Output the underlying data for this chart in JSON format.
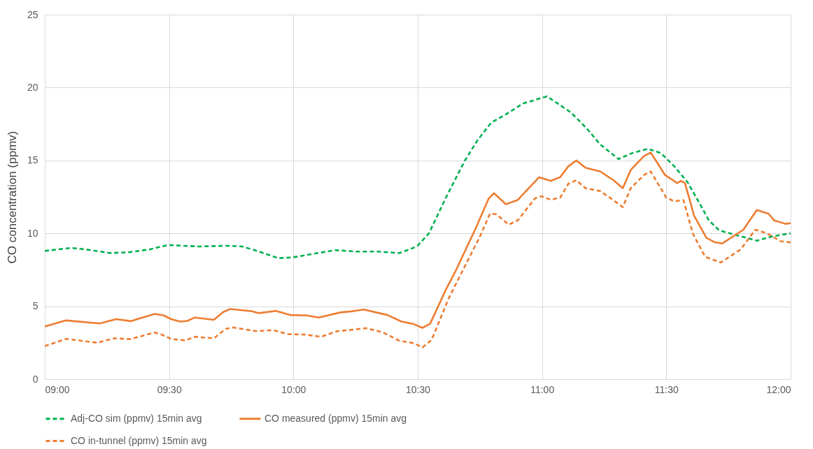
{
  "chart_data": {
    "type": "line",
    "ylabel": "CO concentration (ppmv)",
    "xlim": [
      9,
      12
    ],
    "xticks": [
      {
        "value": 9,
        "label": "09:00"
      },
      {
        "value": 9.5,
        "label": "09:30"
      },
      {
        "value": 10,
        "label": "10:00"
      },
      {
        "value": 10.5,
        "label": "10:30"
      },
      {
        "value": 11,
        "label": "11:00"
      },
      {
        "value": 11.5,
        "label": "11:30"
      },
      {
        "value": 12,
        "label": "12:00"
      }
    ],
    "ylim": [
      0,
      25
    ],
    "yticks": [
      0,
      5,
      10,
      15,
      20,
      25
    ],
    "grid": true,
    "legend": "bottom",
    "series": [
      {
        "name": "Adj-CO sim (ppmv) 15min avg",
        "color": "#00b050",
        "line_style": "dashed",
        "x": [
          9.0,
          9.106,
          9.164,
          9.264,
          9.336,
          9.422,
          9.494,
          9.623,
          9.738,
          9.795,
          9.853,
          9.939,
          9.996,
          10.082,
          10.168,
          10.255,
          10.341,
          10.427,
          10.497,
          10.545,
          10.615,
          10.69,
          10.741,
          10.796,
          10.849,
          10.923,
          11.02,
          11.116,
          11.18,
          11.234,
          11.308,
          11.362,
          11.426,
          11.479,
          11.532,
          11.586,
          11.629,
          11.671,
          11.713,
          11.778,
          11.864,
          11.928,
          12.0
        ],
        "values": [
          8.8,
          9.0,
          8.9,
          8.65,
          8.7,
          8.9,
          9.2,
          9.1,
          9.15,
          9.1,
          8.8,
          8.3,
          8.35,
          8.6,
          8.85,
          8.75,
          8.75,
          8.65,
          9.1,
          10.0,
          12.5,
          15.0,
          16.4,
          17.6,
          18.1,
          18.9,
          19.4,
          18.3,
          17.2,
          16.1,
          15.1,
          15.5,
          15.8,
          15.5,
          14.6,
          13.5,
          12.2,
          10.9,
          10.2,
          9.9,
          9.5,
          9.8,
          10.0
        ]
      },
      {
        "name": "CO measured (ppmv) 15min avg",
        "color": "#ed7d31",
        "line_style": "solid",
        "x": [
          9.0,
          9.086,
          9.221,
          9.287,
          9.345,
          9.442,
          9.479,
          9.508,
          9.545,
          9.574,
          9.603,
          9.68,
          9.718,
          9.746,
          9.833,
          9.861,
          9.93,
          9.988,
          10.054,
          10.102,
          10.189,
          10.234,
          10.283,
          10.378,
          10.435,
          10.484,
          10.519,
          10.55,
          10.615,
          10.652,
          10.732,
          10.786,
          10.807,
          10.855,
          10.903,
          10.988,
          11.035,
          11.073,
          11.106,
          11.138,
          11.175,
          11.234,
          11.287,
          11.325,
          11.357,
          11.41,
          11.437,
          11.495,
          11.544,
          11.559,
          11.575,
          11.612,
          11.661,
          11.693,
          11.724,
          11.81,
          11.864,
          11.911,
          11.933,
          11.98,
          12.0
        ],
        "values": [
          3.62,
          4.03,
          3.82,
          4.12,
          3.98,
          4.48,
          4.37,
          4.12,
          3.95,
          4.0,
          4.23,
          4.07,
          4.61,
          4.81,
          4.66,
          4.53,
          4.68,
          4.4,
          4.37,
          4.23,
          4.58,
          4.65,
          4.78,
          4.4,
          3.95,
          3.78,
          3.52,
          3.8,
          6.2,
          7.4,
          10.3,
          12.4,
          12.75,
          12.0,
          12.3,
          13.85,
          13.6,
          13.85,
          14.6,
          15.0,
          14.5,
          14.25,
          13.65,
          13.1,
          14.35,
          15.3,
          15.55,
          14.0,
          13.45,
          13.6,
          13.45,
          11.2,
          9.7,
          9.4,
          9.3,
          10.25,
          11.6,
          11.35,
          10.9,
          10.65,
          10.7
        ]
      },
      {
        "name": "CO in-tunnel (ppmv) 15min avg",
        "color": "#ed7d31",
        "line_style": "dashed",
        "x": [
          9.0,
          9.086,
          9.212,
          9.278,
          9.345,
          9.442,
          9.471,
          9.508,
          9.566,
          9.603,
          9.68,
          9.729,
          9.758,
          9.853,
          9.919,
          9.976,
          10.045,
          10.111,
          10.177,
          10.226,
          10.292,
          10.361,
          10.427,
          10.484,
          10.519,
          10.556,
          10.625,
          10.69,
          10.748,
          10.791,
          10.817,
          10.866,
          10.903,
          10.972,
          10.998,
          11.035,
          11.073,
          11.106,
          11.138,
          11.175,
          11.234,
          11.287,
          11.325,
          11.357,
          11.41,
          11.437,
          11.5,
          11.532,
          11.569,
          11.607,
          11.656,
          11.719,
          11.799,
          11.858,
          11.905,
          11.96,
          12.0
        ],
        "values": [
          2.27,
          2.76,
          2.5,
          2.8,
          2.75,
          3.2,
          3.05,
          2.76,
          2.66,
          2.91,
          2.8,
          3.46,
          3.54,
          3.29,
          3.37,
          3.09,
          3.06,
          2.91,
          3.29,
          3.37,
          3.5,
          3.2,
          2.63,
          2.47,
          2.18,
          2.69,
          5.55,
          7.76,
          9.7,
          11.36,
          11.3,
          10.6,
          10.9,
          12.4,
          12.55,
          12.3,
          12.45,
          13.4,
          13.65,
          13.1,
          12.9,
          12.28,
          11.8,
          13.1,
          14.0,
          14.25,
          12.45,
          12.2,
          12.28,
          9.97,
          8.4,
          8.0,
          8.9,
          10.25,
          10.0,
          9.46,
          9.38
        ]
      }
    ]
  }
}
